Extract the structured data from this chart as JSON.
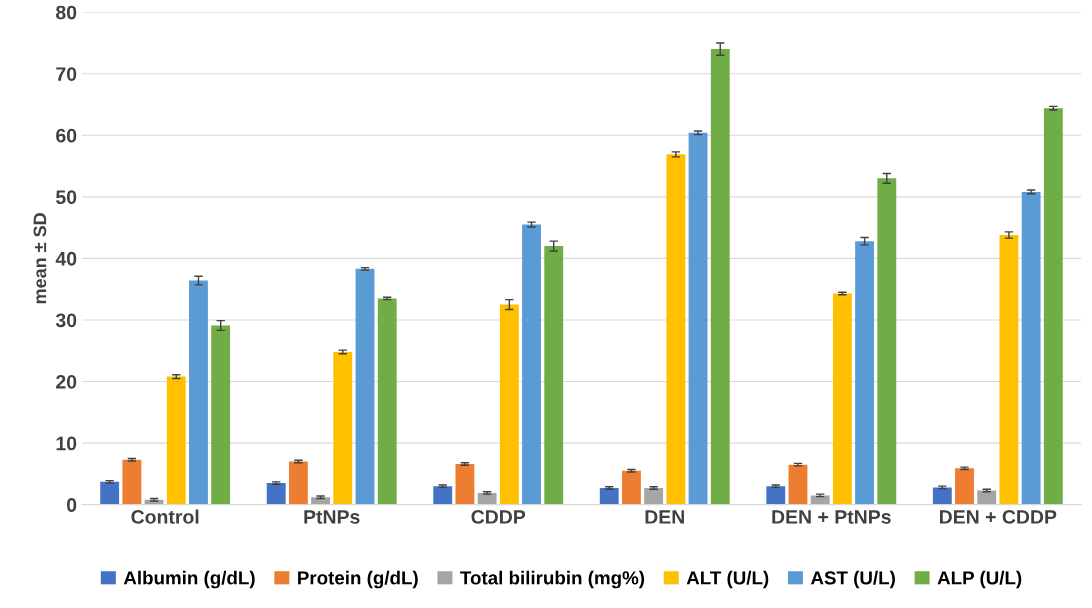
{
  "chart_data": {
    "type": "bar",
    "ylabel": "mean ± SD",
    "categories": [
      "Control",
      "PtNPs",
      "CDDP",
      "DEN",
      "DEN + PtNPs",
      "DEN + CDDP"
    ],
    "series": [
      {
        "name": "Albumin (g/dL)",
        "color": "#4472c4",
        "values": [
          3.7,
          3.5,
          3.0,
          2.7,
          3.0,
          2.8
        ],
        "errors": [
          0.2,
          0.2,
          0.2,
          0.2,
          0.2,
          0.2
        ]
      },
      {
        "name": "Protein (g/dL)",
        "color": "#ed7d31",
        "values": [
          7.3,
          7.0,
          6.6,
          5.5,
          6.5,
          5.9
        ],
        "errors": [
          0.2,
          0.2,
          0.2,
          0.2,
          0.2,
          0.2
        ]
      },
      {
        "name": "Total bilirubin (mg%)",
        "color": "#a5a5a5",
        "values": [
          0.8,
          1.2,
          1.9,
          2.7,
          1.5,
          2.3
        ],
        "errors": [
          0.2,
          0.2,
          0.2,
          0.2,
          0.2,
          0.2
        ]
      },
      {
        "name": "ALT (U/L)",
        "color": "#ffc000",
        "values": [
          20.8,
          24.8,
          32.5,
          56.9,
          34.3,
          43.8
        ],
        "errors": [
          0.3,
          0.3,
          0.8,
          0.4,
          0.2,
          0.5
        ]
      },
      {
        "name": "AST (U/L)",
        "color": "#5b9bd5",
        "values": [
          36.4,
          38.3,
          45.5,
          60.4,
          42.8,
          50.8
        ],
        "errors": [
          0.7,
          0.2,
          0.4,
          0.3,
          0.6,
          0.3
        ]
      },
      {
        "name": "ALP (U/L)",
        "color": "#70ad47",
        "values": [
          29.1,
          33.5,
          42.0,
          74.0,
          53.0,
          64.4
        ],
        "errors": [
          0.8,
          0.2,
          0.8,
          1.0,
          0.8,
          0.3
        ]
      }
    ],
    "ylim": [
      0,
      80
    ],
    "yticks": [
      0,
      10,
      20,
      30,
      40,
      50,
      60,
      70,
      80
    ],
    "grid": "y",
    "legend": "bottom"
  }
}
